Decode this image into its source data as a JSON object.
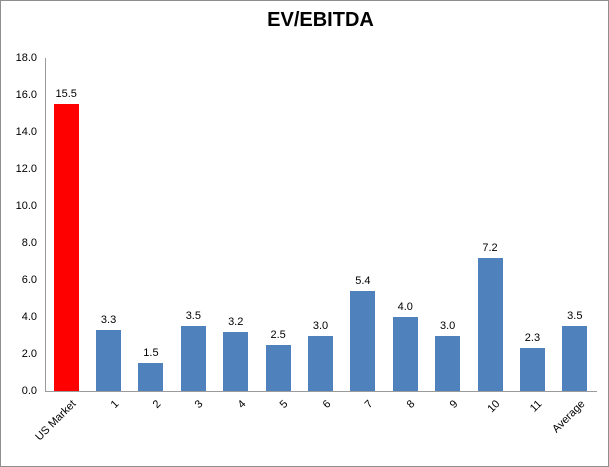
{
  "chart_data": {
    "type": "bar",
    "title": "EV/EBITDA",
    "categories": [
      "US Market",
      "1",
      "2",
      "3",
      "4",
      "5",
      "6",
      "7",
      "8",
      "9",
      "10",
      "11",
      "Average"
    ],
    "values": [
      15.5,
      3.3,
      1.5,
      3.5,
      3.2,
      2.5,
      3.0,
      5.4,
      4.0,
      3.0,
      7.2,
      2.3,
      3.5
    ],
    "value_labels": [
      "15.5",
      "3.3",
      "1.5",
      "3.5",
      "3.2",
      "2.5",
      "3.0",
      "5.4",
      "4.0",
      "3.0",
      "7.2",
      "2.3",
      "3.5"
    ],
    "highlight_index": 0,
    "highlight_color": "#FF0000",
    "bar_color": "#4F81BD",
    "axis_color": "#9B9B9B",
    "text_color": "#000000",
    "xlabel": "",
    "ylabel": "",
    "ylim": [
      0,
      18
    ],
    "ytick_step": 2,
    "ytick_labels": [
      "0.0",
      "2.0",
      "4.0",
      "6.0",
      "8.0",
      "10.0",
      "12.0",
      "14.0",
      "16.0",
      "18.0"
    ],
    "grid": false,
    "legend": false
  }
}
